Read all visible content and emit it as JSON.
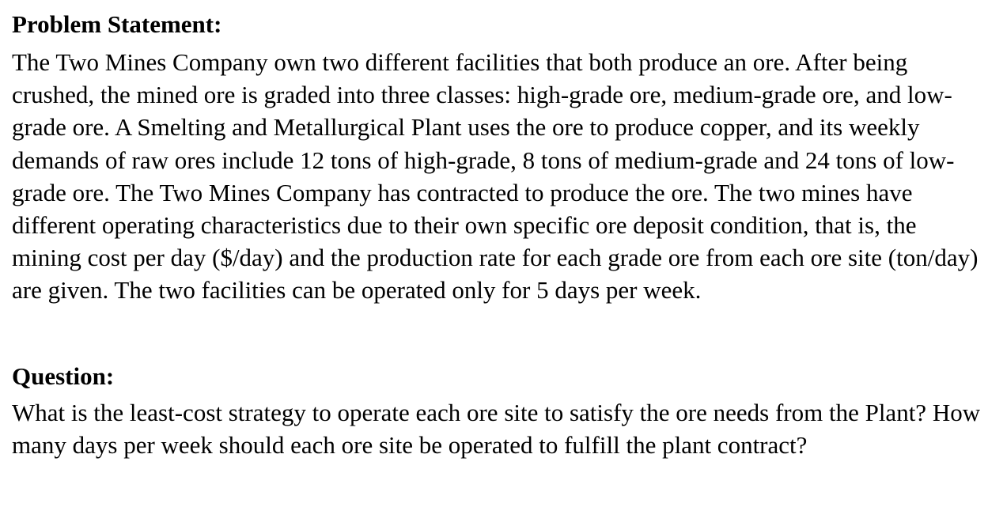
{
  "problem": {
    "heading": "Problem Statement:",
    "text": "The Two Mines Company own two different facilities that both produce an ore. After being crushed, the mined ore is graded into three classes: high-grade ore, medium-grade ore, and low-grade ore. A Smelting and Metallurgical Plant uses the ore to produce copper, and its weekly demands of raw ores include 12 tons of high-grade, 8 tons of medium-grade and 24 tons of low-grade ore. The Two Mines Company has contracted to produce the ore. The two mines have different operating characteristics due to their own specific ore deposit condition, that is, the mining cost per day ($/day) and the production rate for each grade ore from each ore site (ton/day) are given. The two facilities can be operated only for 5 days per week."
  },
  "question": {
    "heading": "Question:",
    "text": "What is the least-cost strategy to operate each ore site to satisfy the ore needs from the Plant? How many days per week should each ore site be operated to fulfill the plant contract?"
  }
}
